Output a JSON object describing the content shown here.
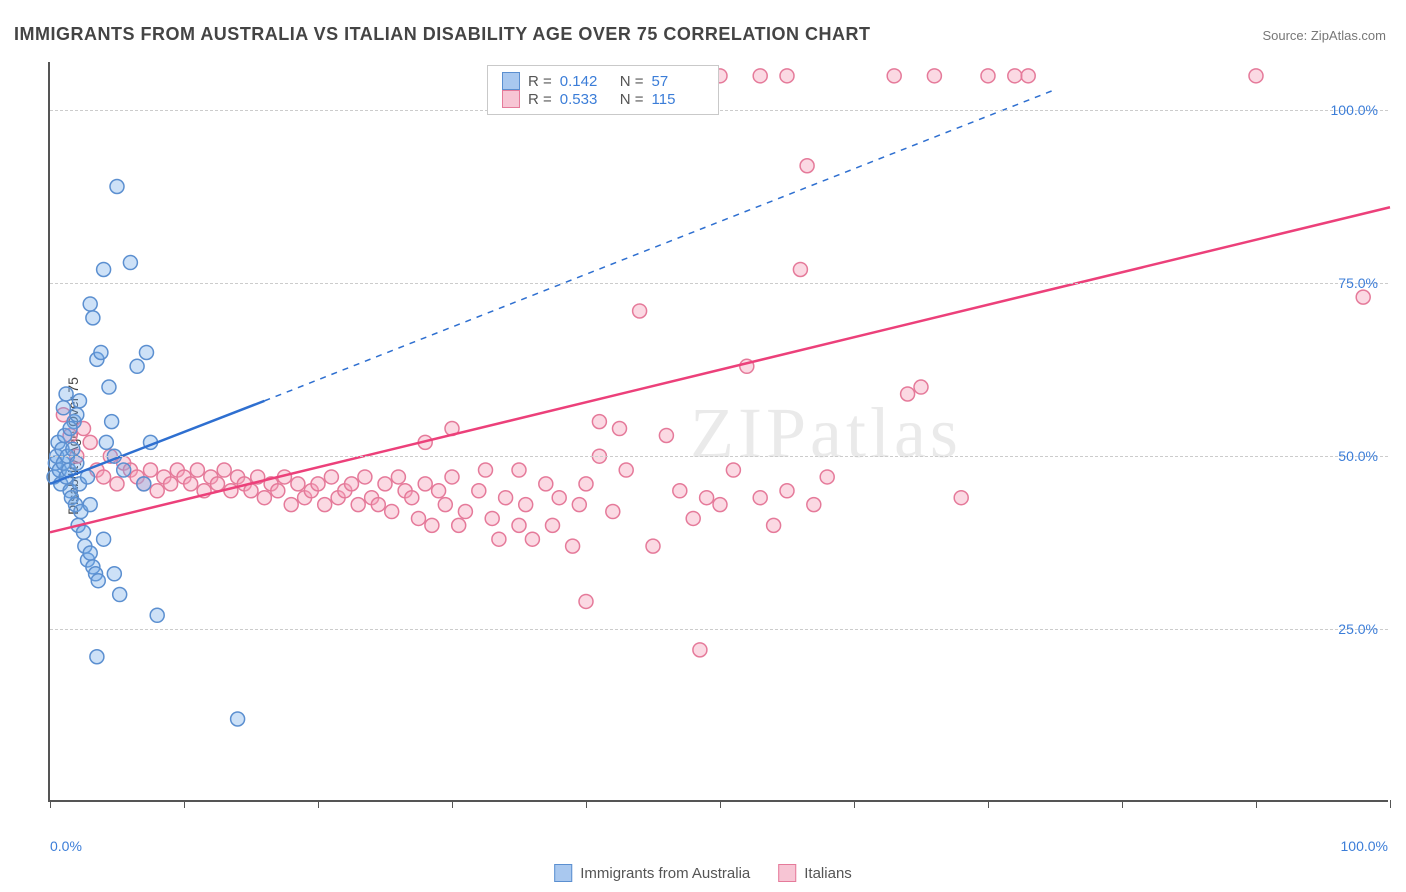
{
  "title": "IMMIGRANTS FROM AUSTRALIA VS ITALIAN DISABILITY AGE OVER 75 CORRELATION CHART",
  "source_prefix": "Source: ",
  "source": "ZipAtlas.com",
  "ylabel": "Disability Age Over 75",
  "watermark": "ZIPatlas",
  "chart": {
    "type": "scatter",
    "xlim": [
      0,
      100
    ],
    "ylim": [
      0,
      107
    ],
    "xtick_positions": [
      0,
      10,
      20,
      30,
      40,
      50,
      60,
      70,
      80,
      90,
      100
    ],
    "xtick_labels_visible": {
      "0": "0.0%",
      "100": "100.0%"
    },
    "ytick_positions": [
      25,
      50,
      75,
      100
    ],
    "ytick_labels": {
      "25": "25.0%",
      "50": "50.0%",
      "75": "75.0%",
      "100": "100.0%"
    },
    "grid_color": "#cccccc",
    "background_color": "#ffffff",
    "axis_color": "#555555",
    "marker_radius": 7,
    "marker_stroke_width": 1.5,
    "trend_line_width": 2.5
  },
  "series": [
    {
      "name": "Immigrants from Australia",
      "fill_color": "#6fa8e8",
      "fill_opacity": 0.35,
      "stroke_color": "#5b8fd0",
      "swatch_fill": "#a9c8ef",
      "swatch_border": "#5b8fd0",
      "R": "0.142",
      "N": "57",
      "trend": {
        "color": "#2e6fd0",
        "solid": {
          "x1": 0,
          "y1": 46,
          "x2": 16,
          "y2": 58
        },
        "dashed": {
          "x1": 16,
          "y1": 58,
          "x2": 75,
          "y2": 103
        }
      },
      "points": [
        [
          0.3,
          47
        ],
        [
          0.4,
          49
        ],
        [
          0.5,
          50
        ],
        [
          0.6,
          52
        ],
        [
          0.7,
          48
        ],
        [
          0.8,
          46
        ],
        [
          0.9,
          51
        ],
        [
          1.0,
          49
        ],
        [
          1.1,
          53
        ],
        [
          1.2,
          47
        ],
        [
          1.3,
          50
        ],
        [
          1.4,
          48
        ],
        [
          1.5,
          45
        ],
        [
          1.6,
          44
        ],
        [
          1.7,
          51
        ],
        [
          1.8,
          55
        ],
        [
          1.9,
          43
        ],
        [
          2.0,
          49
        ],
        [
          2.1,
          40
        ],
        [
          2.2,
          46
        ],
        [
          2.3,
          42
        ],
        [
          2.5,
          39
        ],
        [
          2.6,
          37
        ],
        [
          2.8,
          35
        ],
        [
          3.0,
          36
        ],
        [
          3.2,
          34
        ],
        [
          3.4,
          33
        ],
        [
          3.6,
          32
        ],
        [
          3.0,
          72
        ],
        [
          3.2,
          70
        ],
        [
          3.5,
          64
        ],
        [
          3.8,
          65
        ],
        [
          4.0,
          77
        ],
        [
          4.2,
          52
        ],
        [
          4.4,
          60
        ],
        [
          4.6,
          55
        ],
        [
          4.8,
          50
        ],
        [
          5.0,
          89
        ],
        [
          5.5,
          48
        ],
        [
          6.0,
          78
        ],
        [
          6.5,
          63
        ],
        [
          7.0,
          46
        ],
        [
          7.2,
          65
        ],
        [
          7.5,
          52
        ],
        [
          8.0,
          27
        ],
        [
          3.5,
          21
        ],
        [
          4.8,
          33
        ],
        [
          5.2,
          30
        ],
        [
          4.0,
          38
        ],
        [
          2.0,
          56
        ],
        [
          2.2,
          58
        ],
        [
          1.0,
          57
        ],
        [
          1.2,
          59
        ],
        [
          1.5,
          54
        ],
        [
          2.8,
          47
        ],
        [
          3.0,
          43
        ],
        [
          14.0,
          12
        ]
      ]
    },
    {
      "name": "Italians",
      "fill_color": "#f5a0b8",
      "fill_opacity": 0.4,
      "stroke_color": "#e57a9a",
      "swatch_fill": "#f7c5d4",
      "swatch_border": "#e57a9a",
      "R": "0.533",
      "N": "115",
      "trend": {
        "color": "#ec407a",
        "solid": {
          "x1": 0,
          "y1": 39,
          "x2": 100,
          "y2": 86
        },
        "dashed": null
      },
      "points": [
        [
          1.0,
          56
        ],
        [
          1.5,
          53
        ],
        [
          2.0,
          50
        ],
        [
          2.5,
          54
        ],
        [
          3.0,
          52
        ],
        [
          3.5,
          48
        ],
        [
          4.0,
          47
        ],
        [
          4.5,
          50
        ],
        [
          5.0,
          46
        ],
        [
          5.5,
          49
        ],
        [
          6.0,
          48
        ],
        [
          6.5,
          47
        ],
        [
          7.0,
          46
        ],
        [
          7.5,
          48
        ],
        [
          8.0,
          45
        ],
        [
          8.5,
          47
        ],
        [
          9.0,
          46
        ],
        [
          9.5,
          48
        ],
        [
          10.0,
          47
        ],
        [
          10.5,
          46
        ],
        [
          11.0,
          48
        ],
        [
          11.5,
          45
        ],
        [
          12.0,
          47
        ],
        [
          12.5,
          46
        ],
        [
          13.0,
          48
        ],
        [
          13.5,
          45
        ],
        [
          14.0,
          47
        ],
        [
          14.5,
          46
        ],
        [
          15.0,
          45
        ],
        [
          15.5,
          47
        ],
        [
          16.0,
          44
        ],
        [
          16.5,
          46
        ],
        [
          17.0,
          45
        ],
        [
          17.5,
          47
        ],
        [
          18.0,
          43
        ],
        [
          18.5,
          46
        ],
        [
          19.0,
          44
        ],
        [
          19.5,
          45
        ],
        [
          20.0,
          46
        ],
        [
          20.5,
          43
        ],
        [
          21.0,
          47
        ],
        [
          21.5,
          44
        ],
        [
          22.0,
          45
        ],
        [
          22.5,
          46
        ],
        [
          23.0,
          43
        ],
        [
          23.5,
          47
        ],
        [
          24.0,
          44
        ],
        [
          24.5,
          43
        ],
        [
          25.0,
          46
        ],
        [
          25.5,
          42
        ],
        [
          26.0,
          47
        ],
        [
          26.5,
          45
        ],
        [
          27.0,
          44
        ],
        [
          27.5,
          41
        ],
        [
          28.0,
          46
        ],
        [
          28.5,
          40
        ],
        [
          29.0,
          45
        ],
        [
          29.5,
          43
        ],
        [
          30.0,
          47
        ],
        [
          30.5,
          40
        ],
        [
          31.0,
          42
        ],
        [
          32.0,
          45
        ],
        [
          32.5,
          48
        ],
        [
          33.0,
          41
        ],
        [
          33.5,
          38
        ],
        [
          34.0,
          44
        ],
        [
          35.0,
          40
        ],
        [
          35.5,
          43
        ],
        [
          36.0,
          38
        ],
        [
          37.0,
          46
        ],
        [
          37.5,
          40
        ],
        [
          38.0,
          44
        ],
        [
          39.0,
          37
        ],
        [
          39.5,
          43
        ],
        [
          40.0,
          46
        ],
        [
          41.0,
          50
        ],
        [
          42.0,
          42
        ],
        [
          42.5,
          54
        ],
        [
          43.0,
          48
        ],
        [
          44.0,
          71
        ],
        [
          45.0,
          37
        ],
        [
          46.0,
          53
        ],
        [
          47.0,
          45
        ],
        [
          48.0,
          41
        ],
        [
          48.5,
          22
        ],
        [
          49.0,
          44
        ],
        [
          50.0,
          43
        ],
        [
          51.0,
          48
        ],
        [
          52.0,
          63
        ],
        [
          53.0,
          44
        ],
        [
          54.0,
          40
        ],
        [
          55.0,
          45
        ],
        [
          56.0,
          77
        ],
        [
          56.5,
          92
        ],
        [
          57.0,
          43
        ],
        [
          58.0,
          47
        ],
        [
          63.0,
          105
        ],
        [
          64.0,
          59
        ],
        [
          68.0,
          44
        ],
        [
          70.0,
          105
        ],
        [
          72.0,
          105
        ],
        [
          73.0,
          105
        ],
        [
          90.0,
          105
        ],
        [
          40.0,
          29
        ],
        [
          35.0,
          48
        ],
        [
          30.0,
          54
        ],
        [
          28.0,
          52
        ],
        [
          48.0,
          105
        ],
        [
          50.0,
          105
        ],
        [
          53.0,
          105
        ],
        [
          55.0,
          105
        ],
        [
          65.0,
          60
        ],
        [
          66.0,
          105
        ],
        [
          98.0,
          73
        ],
        [
          41.0,
          55
        ]
      ]
    }
  ],
  "legend_top": {
    "R_label": "R =",
    "N_label": "N ="
  },
  "legend_bottom": {
    "series1_label": "Immigrants from Australia",
    "series2_label": "Italians"
  }
}
